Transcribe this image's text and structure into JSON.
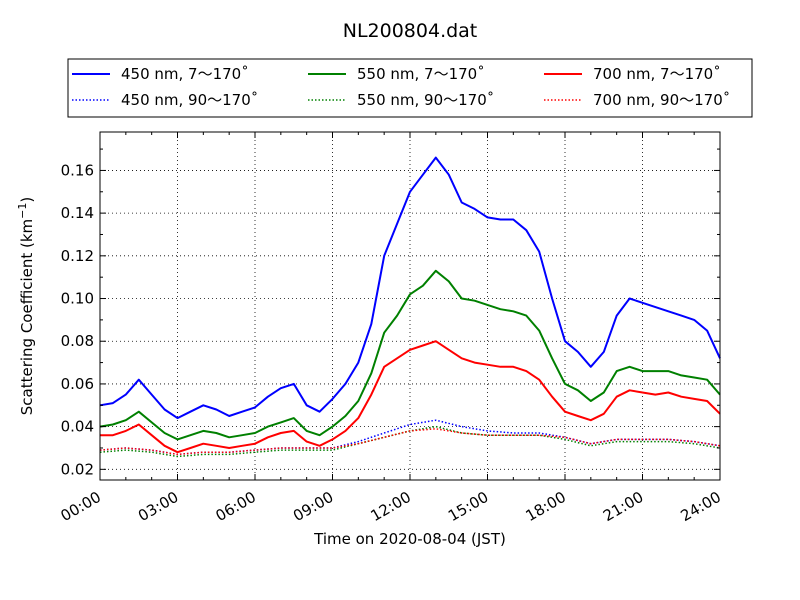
{
  "chart_data": {
    "type": "line",
    "title": "NL200804.dat",
    "xlabel": "Time on 2020-08-04 (JST)",
    "ylabel_main": "Scattering Coefficient (km",
    "ylabel_sup": "−1",
    "ylabel_close": ")",
    "xlim": [
      0,
      24
    ],
    "ylim": [
      0.015,
      0.178
    ],
    "grid": true,
    "legend_position": "top",
    "x_ticks": [
      {
        "value": 0,
        "label": "00:00"
      },
      {
        "value": 3,
        "label": "03:00"
      },
      {
        "value": 6,
        "label": "06:00"
      },
      {
        "value": 9,
        "label": "09:00"
      },
      {
        "value": 12,
        "label": "12:00"
      },
      {
        "value": 15,
        "label": "15:00"
      },
      {
        "value": 18,
        "label": "18:00"
      },
      {
        "value": 21,
        "label": "21:00"
      },
      {
        "value": 24,
        "label": "24:00"
      }
    ],
    "y_ticks": [
      {
        "value": 0.02,
        "label": "0.02"
      },
      {
        "value": 0.04,
        "label": "0.04"
      },
      {
        "value": 0.06,
        "label": "0.06"
      },
      {
        "value": 0.08,
        "label": "0.08"
      },
      {
        "value": 0.1,
        "label": "0.10"
      },
      {
        "value": 0.12,
        "label": "0.12"
      },
      {
        "value": 0.14,
        "label": "0.14"
      },
      {
        "value": 0.16,
        "label": "0.16"
      }
    ],
    "series": [
      {
        "name": "450 nm, 7～170˚",
        "color": "#0000ff",
        "style": "solid",
        "x": [
          0,
          0.5,
          1,
          1.5,
          2,
          2.5,
          3,
          3.5,
          4,
          4.5,
          5,
          5.5,
          6,
          6.5,
          7,
          7.5,
          8,
          8.5,
          9,
          9.5,
          10,
          10.5,
          11,
          11.5,
          12,
          12.5,
          13,
          13.5,
          14,
          14.5,
          15,
          15.5,
          16,
          16.5,
          17,
          17.5,
          18,
          18.5,
          19,
          19.5,
          20,
          20.5,
          21,
          21.5,
          22,
          22.5,
          23,
          23.5,
          24
        ],
        "y": [
          0.05,
          0.051,
          0.055,
          0.062,
          0.055,
          0.048,
          0.044,
          0.047,
          0.05,
          0.048,
          0.045,
          0.047,
          0.049,
          0.054,
          0.058,
          0.06,
          0.05,
          0.047,
          0.053,
          0.06,
          0.07,
          0.088,
          0.12,
          0.135,
          0.15,
          0.158,
          0.166,
          0.158,
          0.145,
          0.142,
          0.138,
          0.137,
          0.137,
          0.132,
          0.122,
          0.1,
          0.08,
          0.075,
          0.068,
          0.075,
          0.092,
          0.1,
          0.098,
          0.096,
          0.094,
          0.092,
          0.09,
          0.085,
          0.072
        ]
      },
      {
        "name": "550 nm, 7～170˚",
        "color": "#008000",
        "style": "solid",
        "x": [
          0,
          0.5,
          1,
          1.5,
          2,
          2.5,
          3,
          3.5,
          4,
          4.5,
          5,
          5.5,
          6,
          6.5,
          7,
          7.5,
          8,
          8.5,
          9,
          9.5,
          10,
          10.5,
          11,
          11.5,
          12,
          12.5,
          13,
          13.5,
          14,
          14.5,
          15,
          15.5,
          16,
          16.5,
          17,
          17.5,
          18,
          18.5,
          19,
          19.5,
          20,
          20.5,
          21,
          21.5,
          22,
          22.5,
          23,
          23.5,
          24
        ],
        "y": [
          0.04,
          0.041,
          0.043,
          0.047,
          0.042,
          0.037,
          0.034,
          0.036,
          0.038,
          0.037,
          0.035,
          0.036,
          0.037,
          0.04,
          0.042,
          0.044,
          0.038,
          0.036,
          0.04,
          0.045,
          0.052,
          0.065,
          0.084,
          0.092,
          0.102,
          0.106,
          0.113,
          0.108,
          0.1,
          0.099,
          0.097,
          0.095,
          0.094,
          0.092,
          0.085,
          0.072,
          0.06,
          0.057,
          0.052,
          0.056,
          0.066,
          0.068,
          0.066,
          0.066,
          0.066,
          0.064,
          0.063,
          0.062,
          0.055
        ]
      },
      {
        "name": "700 nm, 7～170˚",
        "color": "#ff0000",
        "style": "solid",
        "x": [
          0,
          0.5,
          1,
          1.5,
          2,
          2.5,
          3,
          3.5,
          4,
          4.5,
          5,
          5.5,
          6,
          6.5,
          7,
          7.5,
          8,
          8.5,
          9,
          9.5,
          10,
          10.5,
          11,
          11.5,
          12,
          12.5,
          13,
          13.5,
          14,
          14.5,
          15,
          15.5,
          16,
          16.5,
          17,
          17.5,
          18,
          18.5,
          19,
          19.5,
          20,
          20.5,
          21,
          21.5,
          22,
          22.5,
          23,
          23.5,
          24
        ],
        "y": [
          0.036,
          0.036,
          0.038,
          0.041,
          0.036,
          0.031,
          0.028,
          0.03,
          0.032,
          0.031,
          0.03,
          0.031,
          0.032,
          0.035,
          0.037,
          0.038,
          0.033,
          0.031,
          0.034,
          0.038,
          0.044,
          0.055,
          0.068,
          0.072,
          0.076,
          0.078,
          0.08,
          0.076,
          0.072,
          0.07,
          0.069,
          0.068,
          0.068,
          0.066,
          0.062,
          0.054,
          0.047,
          0.045,
          0.043,
          0.046,
          0.054,
          0.057,
          0.056,
          0.055,
          0.056,
          0.054,
          0.053,
          0.052,
          0.046
        ]
      },
      {
        "name": "450 nm, 90～170˚",
        "color": "#0000ff",
        "style": "dotted",
        "x": [
          0,
          1,
          2,
          3,
          4,
          5,
          6,
          7,
          8,
          9,
          10,
          11,
          12,
          13,
          14,
          15,
          16,
          17,
          18,
          19,
          20,
          21,
          22,
          23,
          24
        ],
        "y": [
          0.029,
          0.03,
          0.029,
          0.027,
          0.028,
          0.028,
          0.029,
          0.03,
          0.03,
          0.03,
          0.033,
          0.037,
          0.041,
          0.043,
          0.04,
          0.038,
          0.037,
          0.037,
          0.035,
          0.032,
          0.034,
          0.034,
          0.034,
          0.033,
          0.031
        ]
      },
      {
        "name": "550 nm, 90～170˚",
        "color": "#008000",
        "style": "dotted",
        "x": [
          0,
          1,
          2,
          3,
          4,
          5,
          6,
          7,
          8,
          9,
          10,
          11,
          12,
          13,
          14,
          15,
          16,
          17,
          18,
          19,
          20,
          21,
          22,
          23,
          24
        ],
        "y": [
          0.028,
          0.029,
          0.028,
          0.026,
          0.027,
          0.027,
          0.028,
          0.029,
          0.029,
          0.029,
          0.032,
          0.035,
          0.038,
          0.04,
          0.037,
          0.036,
          0.036,
          0.036,
          0.034,
          0.031,
          0.033,
          0.033,
          0.033,
          0.032,
          0.03
        ]
      },
      {
        "name": "700 nm, 90～170˚",
        "color": "#ff0000",
        "style": "dotted",
        "x": [
          0,
          1,
          2,
          3,
          4,
          5,
          6,
          7,
          8,
          9,
          10,
          11,
          12,
          13,
          14,
          15,
          16,
          17,
          18,
          19,
          20,
          21,
          22,
          23,
          24
        ],
        "y": [
          0.029,
          0.03,
          0.029,
          0.027,
          0.028,
          0.028,
          0.029,
          0.03,
          0.03,
          0.03,
          0.032,
          0.035,
          0.038,
          0.039,
          0.037,
          0.036,
          0.036,
          0.036,
          0.035,
          0.032,
          0.034,
          0.034,
          0.034,
          0.033,
          0.031
        ]
      }
    ]
  }
}
